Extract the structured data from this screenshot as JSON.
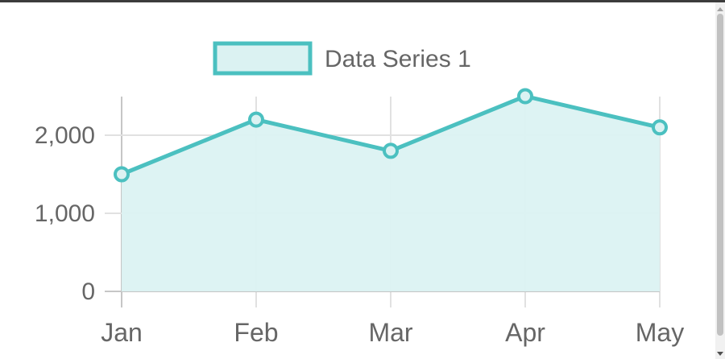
{
  "chart_data": {
    "type": "area",
    "categories": [
      "Jan",
      "Feb",
      "Mar",
      "Apr",
      "May"
    ],
    "series": [
      {
        "name": "Data Series 1",
        "values": [
          1500,
          2200,
          1800,
          2500,
          2100
        ]
      }
    ],
    "yticks": [
      0,
      1000,
      2000
    ],
    "ytick_labels": [
      "0",
      "1,000",
      "2,000"
    ],
    "ylim": [
      0,
      2500
    ],
    "grid": true,
    "legend_position": "top-center",
    "colors": {
      "line": "#4bc0c0",
      "fill": "#dbf2f2",
      "grid": "#e1e1e1",
      "axis": "#c6c6c6",
      "text": "#666666"
    }
  }
}
